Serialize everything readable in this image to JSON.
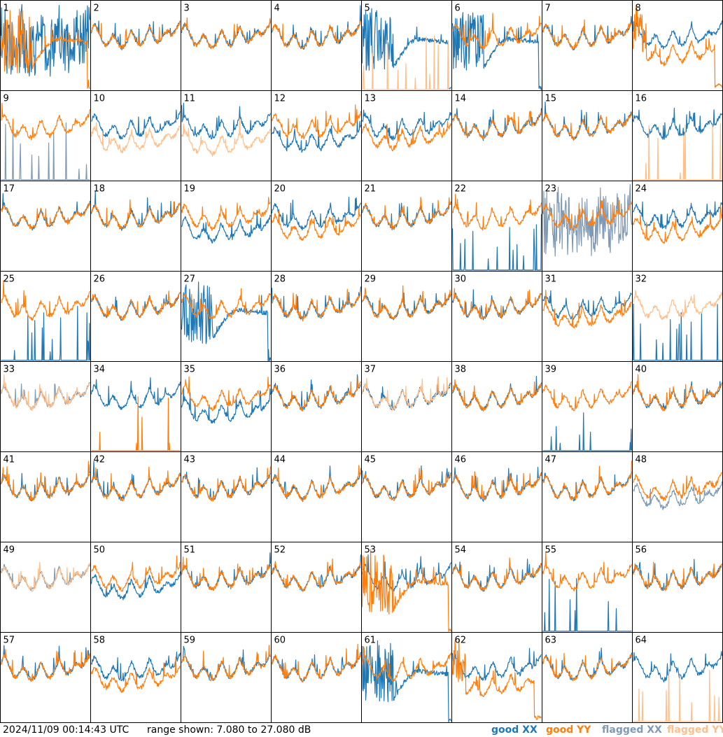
{
  "footer": {
    "timestamp": "2024/11/09 00:14:43 UTC",
    "range": "range shown: 7.080 to 27.080 dB"
  },
  "legend": [
    {
      "label": "good XX",
      "color": "#1f77b4"
    },
    {
      "label": "good YY",
      "color": "#ff7f0e"
    },
    {
      "label": "flagged XX",
      "color": "#7f9ab5"
    },
    {
      "label": "flagged YY",
      "color": "#ffbf8a"
    }
  ],
  "chart_data": {
    "type": "line",
    "panel_grid": {
      "columns": 8,
      "rows": 8
    },
    "y_range_db": [
      7.08,
      27.08
    ],
    "baseline_profile": [
      0.66,
      0.74,
      0.68,
      0.6,
      0.52,
      0.5,
      0.55,
      0.62,
      0.58,
      0.5,
      0.47,
      0.5,
      0.58,
      0.68,
      0.6,
      0.52,
      0.5,
      0.54,
      0.62,
      0.72,
      0.62,
      0.55,
      0.54,
      0.58,
      0.64,
      0.66,
      0.62,
      0.64,
      0.7,
      0.76
    ],
    "panels": [
      {
        "label": "1",
        "xx": "good",
        "yy": "good",
        "xx_style": "noisy",
        "yy_style": "dip"
      },
      {
        "label": "2",
        "xx": "good",
        "yy": "good"
      },
      {
        "label": "3",
        "xx": "good",
        "yy": "good"
      },
      {
        "label": "4",
        "xx": "good",
        "yy": "good"
      },
      {
        "label": "5",
        "xx": "good",
        "yy": "flagged",
        "xx_style": "dip",
        "yy_style": "spikes"
      },
      {
        "label": "6",
        "xx": "good",
        "yy": "good",
        "xx_style": "dip"
      },
      {
        "label": "7",
        "xx": "good",
        "yy": "good"
      },
      {
        "label": "8",
        "xx": "good",
        "yy": "good",
        "yy_style": "drop"
      },
      {
        "label": "9",
        "xx": "flagged",
        "yy": "good",
        "xx_style": "spikes"
      },
      {
        "label": "10",
        "xx": "good",
        "yy": "flagged",
        "yy_offset": -0.15
      },
      {
        "label": "11",
        "xx": "good",
        "yy": "flagged",
        "yy_offset": -0.18
      },
      {
        "label": "12",
        "xx": "good",
        "yy": "good",
        "xx_offset": -0.15
      },
      {
        "label": "13",
        "xx": "good",
        "yy": "good",
        "yy_offset": -0.12
      },
      {
        "label": "14",
        "xx": "good",
        "yy": "good"
      },
      {
        "label": "15",
        "xx": "good",
        "yy": "good"
      },
      {
        "label": "16",
        "xx": "good",
        "yy": "flagged",
        "yy_style": "spikes"
      },
      {
        "label": "17",
        "xx": "good",
        "yy": "good"
      },
      {
        "label": "18",
        "xx": "good",
        "yy": "good"
      },
      {
        "label": "19",
        "xx": "good",
        "yy": "good",
        "xx_offset": -0.15
      },
      {
        "label": "20",
        "xx": "good",
        "yy": "good",
        "yy_offset": -0.12
      },
      {
        "label": "21",
        "xx": "good",
        "yy": "good"
      },
      {
        "label": "22",
        "xx": "good",
        "yy": "good",
        "xx_style": "spikes"
      },
      {
        "label": "23",
        "xx": "flagged",
        "yy": "good",
        "xx_style": "noisy"
      },
      {
        "label": "24",
        "xx": "good",
        "yy": "good",
        "yy_offset": -0.15
      },
      {
        "label": "25",
        "xx": "good",
        "yy": "good",
        "xx_style": "spikes"
      },
      {
        "label": "26",
        "xx": "good",
        "yy": "good"
      },
      {
        "label": "27",
        "xx": "good",
        "yy": "good",
        "xx_style": "dip"
      },
      {
        "label": "28",
        "xx": "good",
        "yy": "good"
      },
      {
        "label": "29",
        "xx": "good",
        "yy": "good"
      },
      {
        "label": "30",
        "xx": "good",
        "yy": "good"
      },
      {
        "label": "31",
        "xx": "good",
        "yy": "good",
        "yy_offset": -0.1
      },
      {
        "label": "32",
        "xx": "good",
        "yy": "flagged",
        "xx_style": "spikes"
      },
      {
        "label": "33",
        "xx": "flagged",
        "yy": "flagged"
      },
      {
        "label": "34",
        "xx": "good",
        "yy": "good",
        "yy_style": "spikes"
      },
      {
        "label": "35",
        "xx": "good",
        "yy": "good",
        "xx_offset": -0.15
      },
      {
        "label": "36",
        "xx": "good",
        "yy": "good"
      },
      {
        "label": "37",
        "xx": "good",
        "yy": "flagged"
      },
      {
        "label": "38",
        "xx": "good",
        "yy": "good"
      },
      {
        "label": "39",
        "xx": "good",
        "yy": "good",
        "xx_style": "spikes"
      },
      {
        "label": "40",
        "xx": "good",
        "yy": "good"
      },
      {
        "label": "41",
        "xx": "good",
        "yy": "good"
      },
      {
        "label": "42",
        "xx": "good",
        "yy": "good"
      },
      {
        "label": "43",
        "xx": "good",
        "yy": "good"
      },
      {
        "label": "44",
        "xx": "good",
        "yy": "good"
      },
      {
        "label": "45",
        "xx": "good",
        "yy": "good"
      },
      {
        "label": "46",
        "xx": "good",
        "yy": "good"
      },
      {
        "label": "47",
        "xx": "good",
        "yy": "good"
      },
      {
        "label": "48",
        "xx": "flagged",
        "yy": "good",
        "xx_offset": -0.1
      },
      {
        "label": "49",
        "xx": "flagged",
        "yy": "flagged"
      },
      {
        "label": "50",
        "xx": "good",
        "yy": "good",
        "xx_offset": -0.1
      },
      {
        "label": "51",
        "xx": "good",
        "yy": "good"
      },
      {
        "label": "52",
        "xx": "good",
        "yy": "good"
      },
      {
        "label": "53",
        "xx": "good",
        "yy": "good",
        "yy_style": "dip"
      },
      {
        "label": "54",
        "xx": "good",
        "yy": "good"
      },
      {
        "label": "55",
        "xx": "good",
        "yy": "good",
        "xx_style": "spikes"
      },
      {
        "label": "56",
        "xx": "good",
        "yy": "good"
      },
      {
        "label": "57",
        "xx": "good",
        "yy": "good"
      },
      {
        "label": "58",
        "xx": "good",
        "yy": "good",
        "yy_offset": -0.12
      },
      {
        "label": "59",
        "xx": "good",
        "yy": "good"
      },
      {
        "label": "60",
        "xx": "good",
        "yy": "good"
      },
      {
        "label": "61",
        "xx": "good",
        "yy": "good",
        "xx_style": "dip"
      },
      {
        "label": "62",
        "xx": "good",
        "yy": "good",
        "yy_style": "drop"
      },
      {
        "label": "63",
        "xx": "good",
        "yy": "good"
      },
      {
        "label": "64",
        "xx": "good",
        "yy": "flagged",
        "yy_style": "spikes"
      }
    ]
  }
}
